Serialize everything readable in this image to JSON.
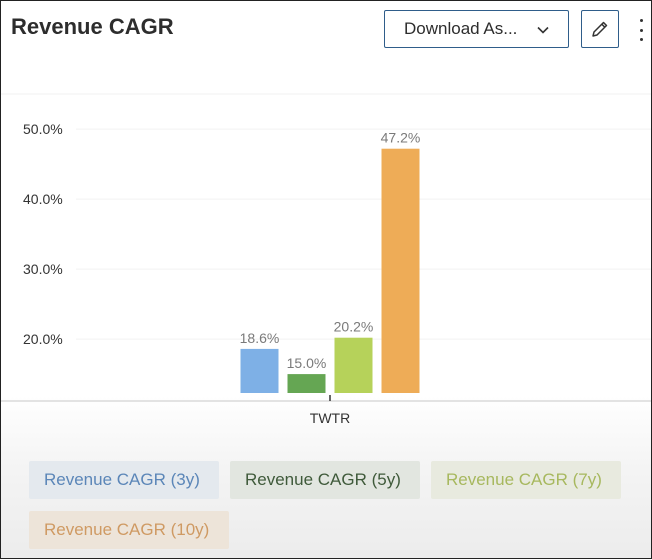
{
  "card": {
    "title": "Revenue CAGR",
    "download_label": "Download As...",
    "icons": {
      "download_chevron": "chevron-down-icon",
      "edit": "pencil-icon",
      "more": "more-vertical-icon"
    }
  },
  "chart_data": {
    "type": "bar",
    "categories": [
      "TWTR"
    ],
    "series": [
      {
        "name": "Revenue CAGR (3y)",
        "values": [
          18.6
        ],
        "label": "18.6%",
        "color": "#7eb0e6"
      },
      {
        "name": "Revenue CAGR (5y)",
        "values": [
          15.0
        ],
        "label": "15.0%",
        "color": "#65a653"
      },
      {
        "name": "Revenue CAGR (7y)",
        "values": [
          20.2
        ],
        "label": "20.2%",
        "color": "#b6d25a"
      },
      {
        "name": "Revenue CAGR (10y)",
        "values": [
          47.2
        ],
        "label": "47.2%",
        "color": "#eeac57"
      }
    ],
    "y_ticks": [
      {
        "value": 20,
        "label": "20.0%"
      },
      {
        "value": 30,
        "label": "30.0%"
      },
      {
        "value": 40,
        "label": "40.0%"
      },
      {
        "value": 50,
        "label": "50.0%"
      }
    ],
    "ylim": [
      12.3,
      52.0
    ],
    "grid": true,
    "legend_position": "bottom",
    "xlabel": "",
    "ylabel": ""
  },
  "legend": {
    "items": [
      {
        "label": "Revenue CAGR (3y)",
        "text_color": "#5b86b8",
        "bg": "#e4e9ee"
      },
      {
        "label": "Revenue CAGR (5y)",
        "text_color": "#3f5a3a",
        "bg": "#e2e6e0"
      },
      {
        "label": "Revenue CAGR (7y)",
        "text_color": "#a7b85e",
        "bg": "#e8eadf"
      },
      {
        "label": "Revenue CAGR (10y)",
        "text_color": "#cf9a63",
        "bg": "#ede4d9"
      }
    ]
  }
}
